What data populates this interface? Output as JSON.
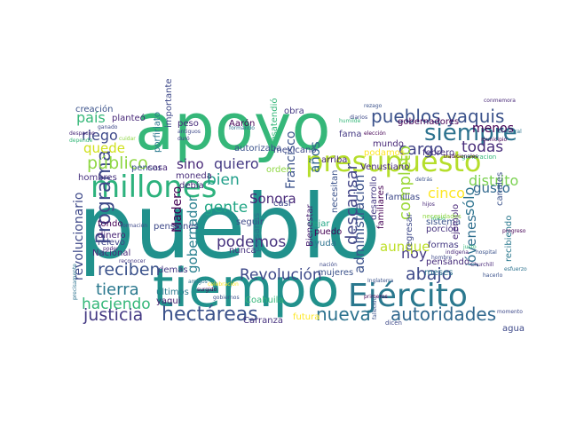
{
  "wordcloud": {
    "words": [
      {
        "text": "pueblo",
        "color": "#21918c"
      },
      {
        "text": "apoyo",
        "color": "#35b779"
      },
      {
        "text": "tiempo",
        "color": "#21918c"
      },
      {
        "text": "Ejército",
        "color": "#2a788e"
      },
      {
        "text": "millones",
        "color": "#2db27d"
      },
      {
        "text": "presupuesto",
        "color": "#b5de2b"
      },
      {
        "text": "pueblos yaquis",
        "color": "#3b528b"
      },
      {
        "text": "siempre",
        "color": "#2c728e"
      },
      {
        "text": "hectáreas",
        "color": "#3b528b"
      },
      {
        "text": "autoridades",
        "color": "#31688e"
      },
      {
        "text": "justicia",
        "color": "#443983"
      },
      {
        "text": "nueva",
        "color": "#2c728e"
      },
      {
        "text": "tierra",
        "color": "#2a788e"
      },
      {
        "text": "haciendo",
        "color": "#35b779"
      },
      {
        "text": "reciben",
        "color": "#3b528b"
      },
      {
        "text": "Programa",
        "color": "#3e4989"
      },
      {
        "text": "público",
        "color": "#8fd744"
      },
      {
        "text": "país",
        "color": "#35b779"
      },
      {
        "text": "riego",
        "color": "#3e4989"
      },
      {
        "text": "quede",
        "color": "#d0e11c"
      },
      {
        "text": "gente",
        "color": "#21a685"
      },
      {
        "text": "quiero",
        "color": "#443983"
      },
      {
        "text": "sino",
        "color": "#482878"
      },
      {
        "text": "bien",
        "color": "#1f9e89"
      },
      {
        "text": "cargo",
        "color": "#414487"
      },
      {
        "text": "todas",
        "color": "#472c7a"
      },
      {
        "text": "menos",
        "color": "#440154"
      },
      {
        "text": "cinco",
        "color": "#fde725"
      },
      {
        "text": "distrito",
        "color": "#7ad151"
      },
      {
        "text": "gusto",
        "color": "#31688e"
      },
      {
        "text": "sólo",
        "color": "#2c728e"
      },
      {
        "text": "hoy",
        "color": "#443983"
      },
      {
        "text": "abajo",
        "color": "#3e4989"
      },
      {
        "text": "aunque",
        "color": "#bddf26"
      },
      {
        "text": "descansar",
        "color": "#414487"
      },
      {
        "text": "completo",
        "color": "#9dd93b"
      },
      {
        "text": "administración",
        "color": "#3b528b"
      },
      {
        "text": "jóvenes",
        "color": "#2e6e8e"
      },
      {
        "text": "podemos",
        "color": "#46327e"
      },
      {
        "text": "Revolución",
        "color": "#3e4989"
      },
      {
        "text": "gobernador",
        "color": "#277f8e"
      },
      {
        "text": "Madero",
        "color": "#440154"
      },
      {
        "text": "Sonora",
        "color": "#482878"
      },
      {
        "text": "Francisco",
        "color": "#3b528b"
      },
      {
        "text": "años",
        "color": "#32658e"
      },
      {
        "text": "revolucionario",
        "color": "#3e4989"
      },
      {
        "text": "creación",
        "color": "#3b528b"
      },
      {
        "text": "planteó",
        "color": "#482878"
      },
      {
        "text": "importante",
        "color": "#3e4989"
      },
      {
        "text": "porfiriato",
        "color": "#2a788e"
      },
      {
        "text": "moneda",
        "color": "#472c7a"
      },
      {
        "text": "debía",
        "color": "#482878"
      },
      {
        "text": "pensar",
        "color": "#3b528b"
      },
      {
        "text": "hombres",
        "color": "#46327e"
      },
      {
        "text": "dinero",
        "color": "#482475"
      },
      {
        "text": "fondo",
        "color": "#440154"
      },
      {
        "text": "relevo",
        "color": "#414487"
      },
      {
        "text": "Nacional",
        "color": "#482878"
      },
      {
        "text": "pensiones",
        "color": "#3e4989"
      },
      {
        "text": "demás",
        "color": "#443983"
      },
      {
        "text": "últimos",
        "color": "#2a788e"
      },
      {
        "text": "yaqui",
        "color": "#481f70"
      },
      {
        "text": "Coahuila",
        "color": "#35b779"
      },
      {
        "text": "Carranza",
        "color": "#46327e"
      },
      {
        "text": "futura",
        "color": "#fde725"
      },
      {
        "text": "mujeres",
        "color": "#3b528b"
      },
      {
        "text": "dejar",
        "color": "#21a685"
      },
      {
        "text": "ayuda",
        "color": "#2c728e"
      },
      {
        "text": "puedo",
        "color": "#440154"
      },
      {
        "text": "seguir",
        "color": "#3e4989"
      },
      {
        "text": "nunca",
        "color": "#46327e"
      },
      {
        "text": "paisanos",
        "color": "#2c728e"
      },
      {
        "text": "casi",
        "color": "#3e4989"
      },
      {
        "text": "Bienestar",
        "color": "#481f70"
      },
      {
        "text": "necesitan",
        "color": "#3b528b"
      },
      {
        "text": "arriba",
        "color": "#482878"
      },
      {
        "text": "desarrollo",
        "color": "#443983"
      },
      {
        "text": "familias",
        "color": "#3e4989"
      },
      {
        "text": "familiares",
        "color": "#440154"
      },
      {
        "text": "regresar",
        "color": "#3e4989"
      },
      {
        "text": "porción",
        "color": "#46327e"
      },
      {
        "text": "sistema",
        "color": "#3b528b"
      },
      {
        "text": "formas",
        "color": "#443983"
      },
      {
        "text": "pensando",
        "color": "#472c7a"
      },
      {
        "text": "meses",
        "color": "#2c728e"
      },
      {
        "text": "ejemplo",
        "color": "#482878"
      },
      {
        "text": "recibiendo",
        "color": "#2a788e"
      },
      {
        "text": "canales",
        "color": "#3b528b"
      },
      {
        "text": "agua",
        "color": "#3e4989"
      },
      {
        "text": "febrero",
        "color": "#46327e"
      },
      {
        "text": "mundo",
        "color": "#482878"
      },
      {
        "text": "podamos",
        "color": "#fde725"
      },
      {
        "text": "fama",
        "color": "#443983"
      },
      {
        "text": "gobernadores",
        "color": "#440154"
      },
      {
        "text": "Venustiano",
        "color": "#482878"
      },
      {
        "text": "mexicano",
        "color": "#3e4989"
      },
      {
        "text": "desatendió",
        "color": "#35b779"
      },
      {
        "text": "orden",
        "color": "#8fd744"
      },
      {
        "text": "autorizaba",
        "color": "#3b528b"
      },
      {
        "text": "Aarón",
        "color": "#440154"
      },
      {
        "text": "peso",
        "color": "#472c7a"
      },
      {
        "text": "obra",
        "color": "#443983"
      },
      {
        "text": "cosa",
        "color": "#482878"
      },
      {
        "text": "ganado",
        "color": "#3e4989"
      },
      {
        "text": "elección",
        "color": "#440154"
      },
      {
        "text": "generacion",
        "color": "#35b779"
      },
      {
        "text": "municipio",
        "color": "#440154"
      },
      {
        "text": "conmemora",
        "color": "#482878"
      },
      {
        "text": "rezago",
        "color": "#3b528b"
      },
      {
        "text": "humilde",
        "color": "#35b779"
      },
      {
        "text": "formando",
        "color": "#2c728e"
      },
      {
        "text": "antiguos",
        "color": "#3e4989"
      },
      {
        "text": "duró",
        "color": "#443983"
      },
      {
        "text": "amigos",
        "color": "#2c728e"
      },
      {
        "text": "gobiernos",
        "color": "#3b528b"
      },
      {
        "text": "surgido",
        "color": "#440154"
      },
      {
        "text": "formación",
        "color": "#3e4989"
      },
      {
        "text": "poder",
        "color": "#482878"
      },
      {
        "text": "reconocer",
        "color": "#443983"
      },
      {
        "text": "precisamente",
        "color": "#2c728e"
      },
      {
        "text": "Inglaterra",
        "color": "#3b528b"
      },
      {
        "text": "primeros",
        "color": "#440154"
      },
      {
        "text": "dicen",
        "color": "#3e4989"
      },
      {
        "text": "Churchill",
        "color": "#482878"
      },
      {
        "text": "hacerlo",
        "color": "#3b528b"
      },
      {
        "text": "momento",
        "color": "#3e4989"
      },
      {
        "text": "tradicionales",
        "color": "#440154"
      },
      {
        "text": "ancestral",
        "color": "#2c728e"
      },
      {
        "text": "detrás",
        "color": "#3b528b"
      },
      {
        "text": "hijos",
        "color": "#482878"
      },
      {
        "text": "inicio",
        "color": "#35b779"
      },
      {
        "text": "hombre",
        "color": "#3e4989"
      },
      {
        "text": "depende",
        "color": "#35b779"
      },
      {
        "text": "fallecido",
        "color": "#3b528b"
      },
      {
        "text": "cuidar",
        "color": "#8fd744"
      },
      {
        "text": "despacho",
        "color": "#482878"
      },
      {
        "text": "diarios",
        "color": "#3e4989"
      },
      {
        "text": "justo",
        "color": "#35b779"
      },
      {
        "text": "progreso",
        "color": "#440154"
      },
      {
        "text": "hospital",
        "color": "#3b528b"
      },
      {
        "text": "esfuerzo",
        "color": "#2c728e"
      },
      {
        "text": "nación",
        "color": "#3e4989"
      },
      {
        "text": "indígena",
        "color": "#482878"
      },
      {
        "text": "celebración",
        "color": "#fde725"
      },
      {
        "text": "necesidades",
        "color": "#8fd744"
      }
    ]
  }
}
